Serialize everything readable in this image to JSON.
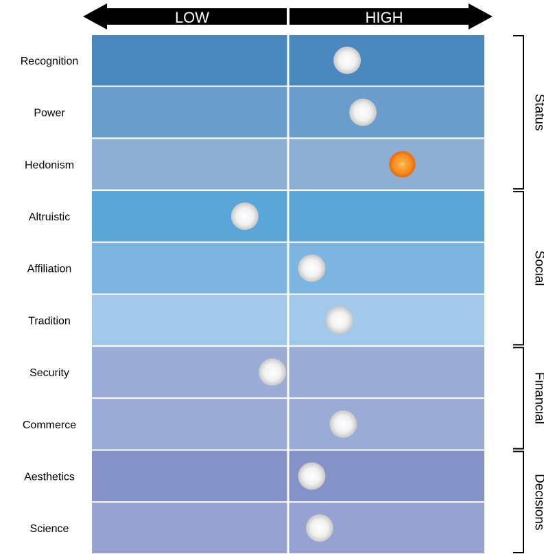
{
  "chart_data": {
    "type": "scatter",
    "title": "",
    "scale_labels": {
      "low": "LOW",
      "high": "HIGH"
    },
    "x_range": [
      0,
      1
    ],
    "x_midpoint": 0.5,
    "categories": [
      "Recognition",
      "Power",
      "Hedonism",
      "Altruistic",
      "Affiliation",
      "Tradition",
      "Security",
      "Commerce",
      "Aesthetics",
      "Science"
    ],
    "values": [
      0.65,
      0.69,
      0.79,
      0.39,
      0.56,
      0.63,
      0.46,
      0.64,
      0.56,
      0.58
    ],
    "row_colors": [
      "#4a89c0",
      "#6a9dcb",
      "#8dafd4",
      "#5aa6d9",
      "#7eb4e0",
      "#a2c8ea",
      "#9aacd6",
      "#9aacd6",
      "#8592c8",
      "#98a2d2"
    ],
    "marker_colors": {
      "default": "#dddddd",
      "highlight": "#f07810"
    },
    "highlighted": [
      "Hedonism"
    ],
    "groups": [
      {
        "name": "Status",
        "categories": [
          "Recognition",
          "Power",
          "Hedonism"
        ]
      },
      {
        "name": "Social",
        "categories": [
          "Altruistic",
          "Affiliation",
          "Tradition"
        ]
      },
      {
        "name": "Financial",
        "categories": [
          "Security",
          "Commerce"
        ]
      },
      {
        "name": "Decisions",
        "categories": [
          "Aesthetics",
          "Science"
        ]
      }
    ],
    "grid": true,
    "legend": "none"
  }
}
